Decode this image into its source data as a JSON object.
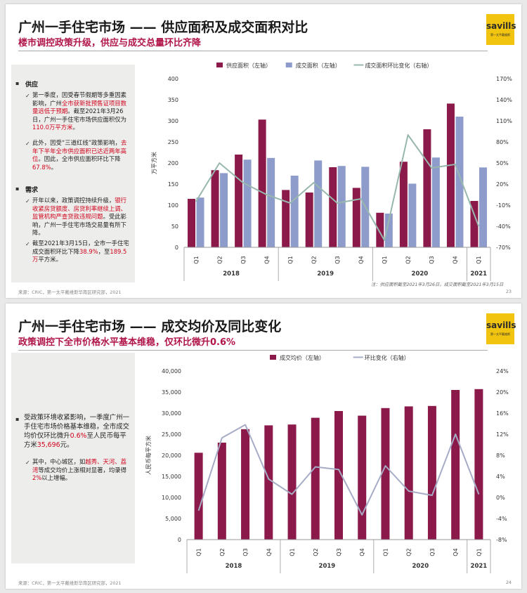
{
  "slide1": {
    "title": "广州一手住宅市场 —— 供应面积及成交面积对比",
    "subtitle": "楼市调控政策升级，供应与成交总量环比齐降",
    "logo": {
      "brand": "savills",
      "sub": "第一太平戴维斯"
    },
    "left": {
      "h1": "供应",
      "b1": {
        "t1": "第一季度，因受春节假期等多重因素影响，广州",
        "r1": "全市获新批预售证项目数量远低于预期",
        "t2": "。截至2021年3月26日，广州一手住宅市场供应面积仅为",
        "r2": "110.0万平方米",
        "t3": "。"
      },
      "b2": {
        "t1": "此外，因受“三道红线”政策影响，",
        "r1": "去年下半年全市供应面积已达近两年高位",
        "t2": "。因此，全市供应面积环比下降",
        "r2": "67.8%",
        "t3": "。"
      },
      "h2": "需求",
      "b3": {
        "t1": "开年以来，政策调控持续升级，",
        "r1": "银行收紧房贷额度、房贷利率继续上调、监管机构严查贷款违规问题",
        "t2": "。受此影响，广州一手住宅市场交易量有所下降。"
      },
      "b4": {
        "t1": "截至2021年3月15日，全市一手住宅成交面积环比下降",
        "r1": "38.9%",
        "t2": "，至",
        "r2": "189.5万",
        "t3": "平方米。"
      }
    },
    "note": "注：供应面积截至2021年3月26日，成交面积截至2021年3月15日",
    "footer": "来源：CRIC，第一太平戴维斯华南区研究部，2021",
    "page": "23"
  },
  "slide2": {
    "title": "广州一手住宅市场 —— 成交均价及同比变化",
    "subtitle": "政策调控下全市价格水平基本维稳，仅环比微升0.6%",
    "logo": {
      "brand": "savills",
      "sub": "第一太平戴维斯"
    },
    "left": {
      "b1": {
        "t1": "受政策环境收紧影响，一季度广州一手住宅市场价格基本维稳，全市成交均价仅环比微升",
        "r1": "0.6%",
        "t2": "至人民币每平方米",
        "r2": "35,696",
        "t3": "元。"
      },
      "b2": {
        "t1": "其中，中心城区，如",
        "r1": "越秀、天河、荔湾",
        "t2": "等成交均价上涨相对显著，均录得",
        "r2": "2%",
        "t3": "以上增幅。"
      }
    },
    "footer": "来源：CRIC，第一太平戴维斯华南区研究部，2021",
    "page": "24"
  },
  "chart_data": [
    {
      "type": "bar",
      "categories": [
        "Q1",
        "Q2",
        "Q3",
        "Q4",
        "Q1",
        "Q2",
        "Q3",
        "Q4",
        "Q1",
        "Q2",
        "Q3",
        "Q4",
        "Q1"
      ],
      "year_groups": [
        {
          "year": "2018",
          "count": 4
        },
        {
          "year": "2019",
          "count": 4
        },
        {
          "year": "2020",
          "count": 4
        },
        {
          "year": "2021",
          "count": 1
        }
      ],
      "series": [
        {
          "name": "供应面积（左轴）",
          "type": "bar",
          "axis": "left",
          "color": "#8b1a4a",
          "values": [
            115,
            183,
            220,
            303,
            136,
            130,
            190,
            141,
            82,
            203,
            280,
            341,
            110
          ]
        },
        {
          "name": "成交面积（左轴）",
          "type": "bar",
          "axis": "left",
          "color": "#8e9ccb",
          "values": [
            118,
            176,
            208,
            212,
            170,
            206,
            193,
            191,
            80,
            151,
            213,
            310,
            189.5
          ]
        },
        {
          "name": "成交面积环比变化（右轴）",
          "type": "line",
          "axis": "right",
          "color": "#98b7ad",
          "values": [
            -5,
            50,
            22,
            5,
            -7,
            22,
            -7,
            -1,
            -60,
            90,
            43,
            48,
            -40
          ]
        }
      ],
      "ylabel": "万平方米",
      "ylim": [
        0,
        400
      ],
      "yticks": [
        0,
        50,
        100,
        150,
        200,
        250,
        300,
        350,
        400
      ],
      "y2lim": [
        -70,
        170
      ],
      "y2ticks": [
        "-70%",
        "-40%",
        "-10%",
        "20%",
        "50%",
        "80%",
        "110%",
        "140%",
        "170%"
      ],
      "legend": "top",
      "grid": false
    },
    {
      "type": "bar",
      "categories": [
        "Q1",
        "Q2",
        "Q3",
        "Q4",
        "Q1",
        "Q2",
        "Q3",
        "Q4",
        "Q1",
        "Q2",
        "Q3",
        "Q4",
        "Q1"
      ],
      "year_groups": [
        {
          "year": "2018",
          "count": 4
        },
        {
          "year": "2019",
          "count": 4
        },
        {
          "year": "2020",
          "count": 4
        },
        {
          "year": "2021",
          "count": 1
        }
      ],
      "series": [
        {
          "name": "成交均价（左轴）",
          "type": "bar",
          "axis": "left",
          "color": "#8b1a4a",
          "values": [
            20600,
            23000,
            26200,
            27100,
            27300,
            28900,
            30500,
            29400,
            31200,
            31600,
            31700,
            35500,
            35696
          ]
        },
        {
          "name": "环比变化（右轴）",
          "type": "line",
          "axis": "right",
          "color": "#a6abc6",
          "values": [
            -2.5,
            11.3,
            13.8,
            3.5,
            0.6,
            5.8,
            5.3,
            -3.3,
            6.0,
            1.2,
            0.4,
            12.0,
            0.6
          ]
        }
      ],
      "ylabel": "人民币每平方米",
      "ylim": [
        0,
        40000
      ],
      "yticks": [
        "0",
        "5,000",
        "10,000",
        "15,000",
        "20,000",
        "25,000",
        "30,000",
        "35,000",
        "40,000"
      ],
      "y2lim": [
        -8,
        24
      ],
      "y2ticks": [
        "-8%",
        "-4%",
        "0%",
        "4%",
        "8%",
        "12%",
        "16%",
        "20%",
        "24%"
      ],
      "legend": "top",
      "grid": false
    }
  ]
}
